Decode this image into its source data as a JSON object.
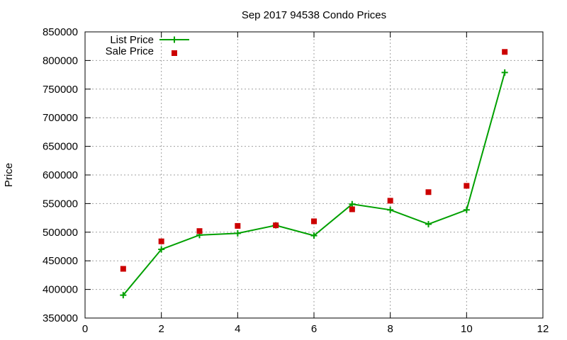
{
  "chart_data": {
    "type": "line",
    "title": "Sep 2017 94538 Condo Prices",
    "xlabel": "",
    "ylabel": "Price",
    "xlim": [
      0,
      12
    ],
    "ylim": [
      350000,
      850000
    ],
    "x_ticks": [
      0,
      2,
      4,
      6,
      8,
      10,
      12
    ],
    "y_ticks": [
      350000,
      400000,
      450000,
      500000,
      550000,
      600000,
      650000,
      700000,
      750000,
      800000,
      850000
    ],
    "grid": true,
    "legend_position": "top-left",
    "series": [
      {
        "name": "List Price",
        "style": "line-with-plus-markers",
        "color": "#00a000",
        "x": [
          1,
          2,
          3,
          4,
          5,
          6,
          7,
          8,
          9,
          10,
          11
        ],
        "y": [
          390000,
          470000,
          495000,
          498000,
          512000,
          494000,
          549000,
          539000,
          514000,
          539000,
          779000
        ]
      },
      {
        "name": "Sale Price",
        "style": "square-markers",
        "color": "#cc0000",
        "x": [
          1,
          2,
          3,
          4,
          5,
          6,
          7,
          8,
          9,
          10,
          11
        ],
        "y": [
          436000,
          484000,
          502000,
          511000,
          512000,
          519000,
          540000,
          555000,
          570000,
          581000,
          815000
        ]
      }
    ]
  }
}
